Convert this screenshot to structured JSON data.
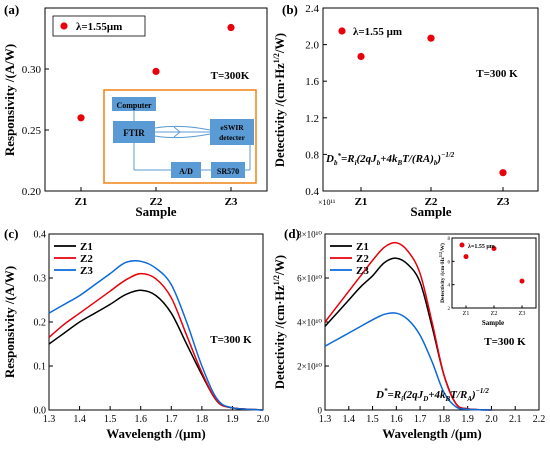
{
  "colors": {
    "red": "#e8000b",
    "black": "#000000",
    "blue": "#0a6ad8",
    "orange": "#f08a24",
    "box_blue": "#5b9bd5"
  },
  "chart_data": [
    {
      "panel_label": "(a)",
      "type": "scatter",
      "xlabel": "Sample",
      "ylabel": "Responsivity /(A/W)",
      "categories": [
        "Z1",
        "Z2",
        "Z3"
      ],
      "values": [
        0.26,
        0.298,
        0.334
      ],
      "ylim": [
        0.2,
        0.35
      ],
      "yticks": [
        "0.20",
        "0.25",
        "0.30"
      ],
      "legend": "λ=1.55μm",
      "annotation": "T=300K",
      "inset_diagram": {
        "computer": "Computer",
        "ftir": "FTIR",
        "detector_line1": "eSWIR",
        "detector_line2": "detecter",
        "ad": "A/D",
        "sr": "SR570"
      }
    },
    {
      "panel_label": "(b)",
      "type": "scatter",
      "xlabel": "Sample",
      "ylabel": "Detectivity /(cm·Hz^1/2/W)",
      "categories": [
        "Z1",
        "Z2",
        "Z3"
      ],
      "values": [
        1.87,
        2.07,
        0.6
      ],
      "ylim": [
        0.4,
        2.4
      ],
      "yticks": [
        "0.4",
        "0.8",
        "1.2",
        "1.6",
        "2.0",
        "2.4"
      ],
      "multiplier": "×10¹¹",
      "legend": "λ=1.55 μm",
      "annotation": "T=300 K",
      "formula": "D*b=Ri(2qJb+4kBT/(RA)b)^-1/2"
    },
    {
      "panel_label": "(c)",
      "type": "line",
      "xlabel": "Wavelength /(μm)",
      "ylabel": "Responsivity /(A/W)",
      "xlim": [
        1.3,
        2.0
      ],
      "ylim": [
        0.0,
        0.4
      ],
      "xticks": [
        "1.3",
        "1.4",
        "1.5",
        "1.6",
        "1.7",
        "1.8",
        "1.9",
        "2.0"
      ],
      "yticks": [
        "0.0",
        "0.1",
        "0.2",
        "0.3",
        "0.4"
      ],
      "annotation": "T=300 K",
      "series": [
        {
          "name": "Z1",
          "x": [
            1.3,
            1.35,
            1.4,
            1.45,
            1.5,
            1.55,
            1.6,
            1.65,
            1.7,
            1.75,
            1.8,
            1.85,
            1.9,
            2.0
          ],
          "y": [
            0.15,
            0.175,
            0.2,
            0.22,
            0.24,
            0.262,
            0.272,
            0.26,
            0.22,
            0.15,
            0.08,
            0.02,
            0.005,
            0.0
          ]
        },
        {
          "name": "Z2",
          "x": [
            1.3,
            1.35,
            1.4,
            1.45,
            1.5,
            1.55,
            1.6,
            1.65,
            1.7,
            1.75,
            1.8,
            1.85,
            1.9,
            2.0
          ],
          "y": [
            0.165,
            0.195,
            0.22,
            0.245,
            0.27,
            0.295,
            0.31,
            0.298,
            0.255,
            0.17,
            0.085,
            0.02,
            0.005,
            0.0
          ]
        },
        {
          "name": "Z3",
          "x": [
            1.3,
            1.35,
            1.4,
            1.45,
            1.5,
            1.55,
            1.6,
            1.65,
            1.7,
            1.75,
            1.8,
            1.85,
            1.9,
            2.0
          ],
          "y": [
            0.22,
            0.24,
            0.26,
            0.285,
            0.31,
            0.335,
            0.338,
            0.322,
            0.285,
            0.2,
            0.1,
            0.025,
            0.005,
            0.0
          ]
        }
      ]
    },
    {
      "panel_label": "(d)",
      "type": "line",
      "xlabel": "Wavelength /(μm)",
      "ylabel": "Detectivity /(cm·Hz^1/2/W)",
      "xlim": [
        1.3,
        2.2
      ],
      "ylim": [
        0,
        8
      ],
      "xticks": [
        "1.3",
        "1.4",
        "1.5",
        "1.6",
        "1.7",
        "1.8",
        "1.9",
        "2.0",
        "2.1",
        "2.2"
      ],
      "yticks": [
        "0",
        "2×10¹⁰",
        "4×10¹⁰",
        "6×10¹⁰",
        "8×10¹⁰"
      ],
      "annotation": "T=300 K",
      "formula": "D*=Ri(2qJD+4kBT/RA)^-1/2",
      "series": [
        {
          "name": "Z1",
          "x": [
            1.3,
            1.35,
            1.4,
            1.45,
            1.5,
            1.55,
            1.6,
            1.65,
            1.7,
            1.75,
            1.8,
            1.85,
            1.9,
            2.0
          ],
          "y": [
            3.8,
            4.4,
            5.0,
            5.6,
            6.1,
            6.7,
            6.9,
            6.6,
            5.8,
            3.8,
            1.6,
            0.3,
            0.05,
            0.0
          ]
        },
        {
          "name": "Z2",
          "x": [
            1.3,
            1.35,
            1.4,
            1.45,
            1.5,
            1.55,
            1.6,
            1.65,
            1.7,
            1.75,
            1.8,
            1.85,
            1.9,
            2.0
          ],
          "y": [
            4.0,
            4.7,
            5.4,
            6.1,
            6.8,
            7.4,
            7.6,
            7.2,
            6.2,
            4.0,
            1.6,
            0.3,
            0.05,
            0.0
          ]
        },
        {
          "name": "Z3",
          "x": [
            1.3,
            1.35,
            1.4,
            1.45,
            1.5,
            1.55,
            1.6,
            1.65,
            1.7,
            1.75,
            1.8,
            1.85,
            1.9,
            2.0
          ],
          "y": [
            2.9,
            3.2,
            3.5,
            3.8,
            4.1,
            4.35,
            4.4,
            4.1,
            3.4,
            2.2,
            0.8,
            0.15,
            0.03,
            0.0
          ]
        }
      ],
      "inset": {
        "legend": "λ=1.55 μm",
        "xlabel": "Sample",
        "ylabel": "Detectivity /(cm·Hz^1/2/W)",
        "categories": [
          "Z1",
          "Z2",
          "Z3"
        ],
        "values": [
          6.4,
          7.1,
          4.3
        ],
        "ylim": [
          2,
          8
        ]
      }
    }
  ]
}
